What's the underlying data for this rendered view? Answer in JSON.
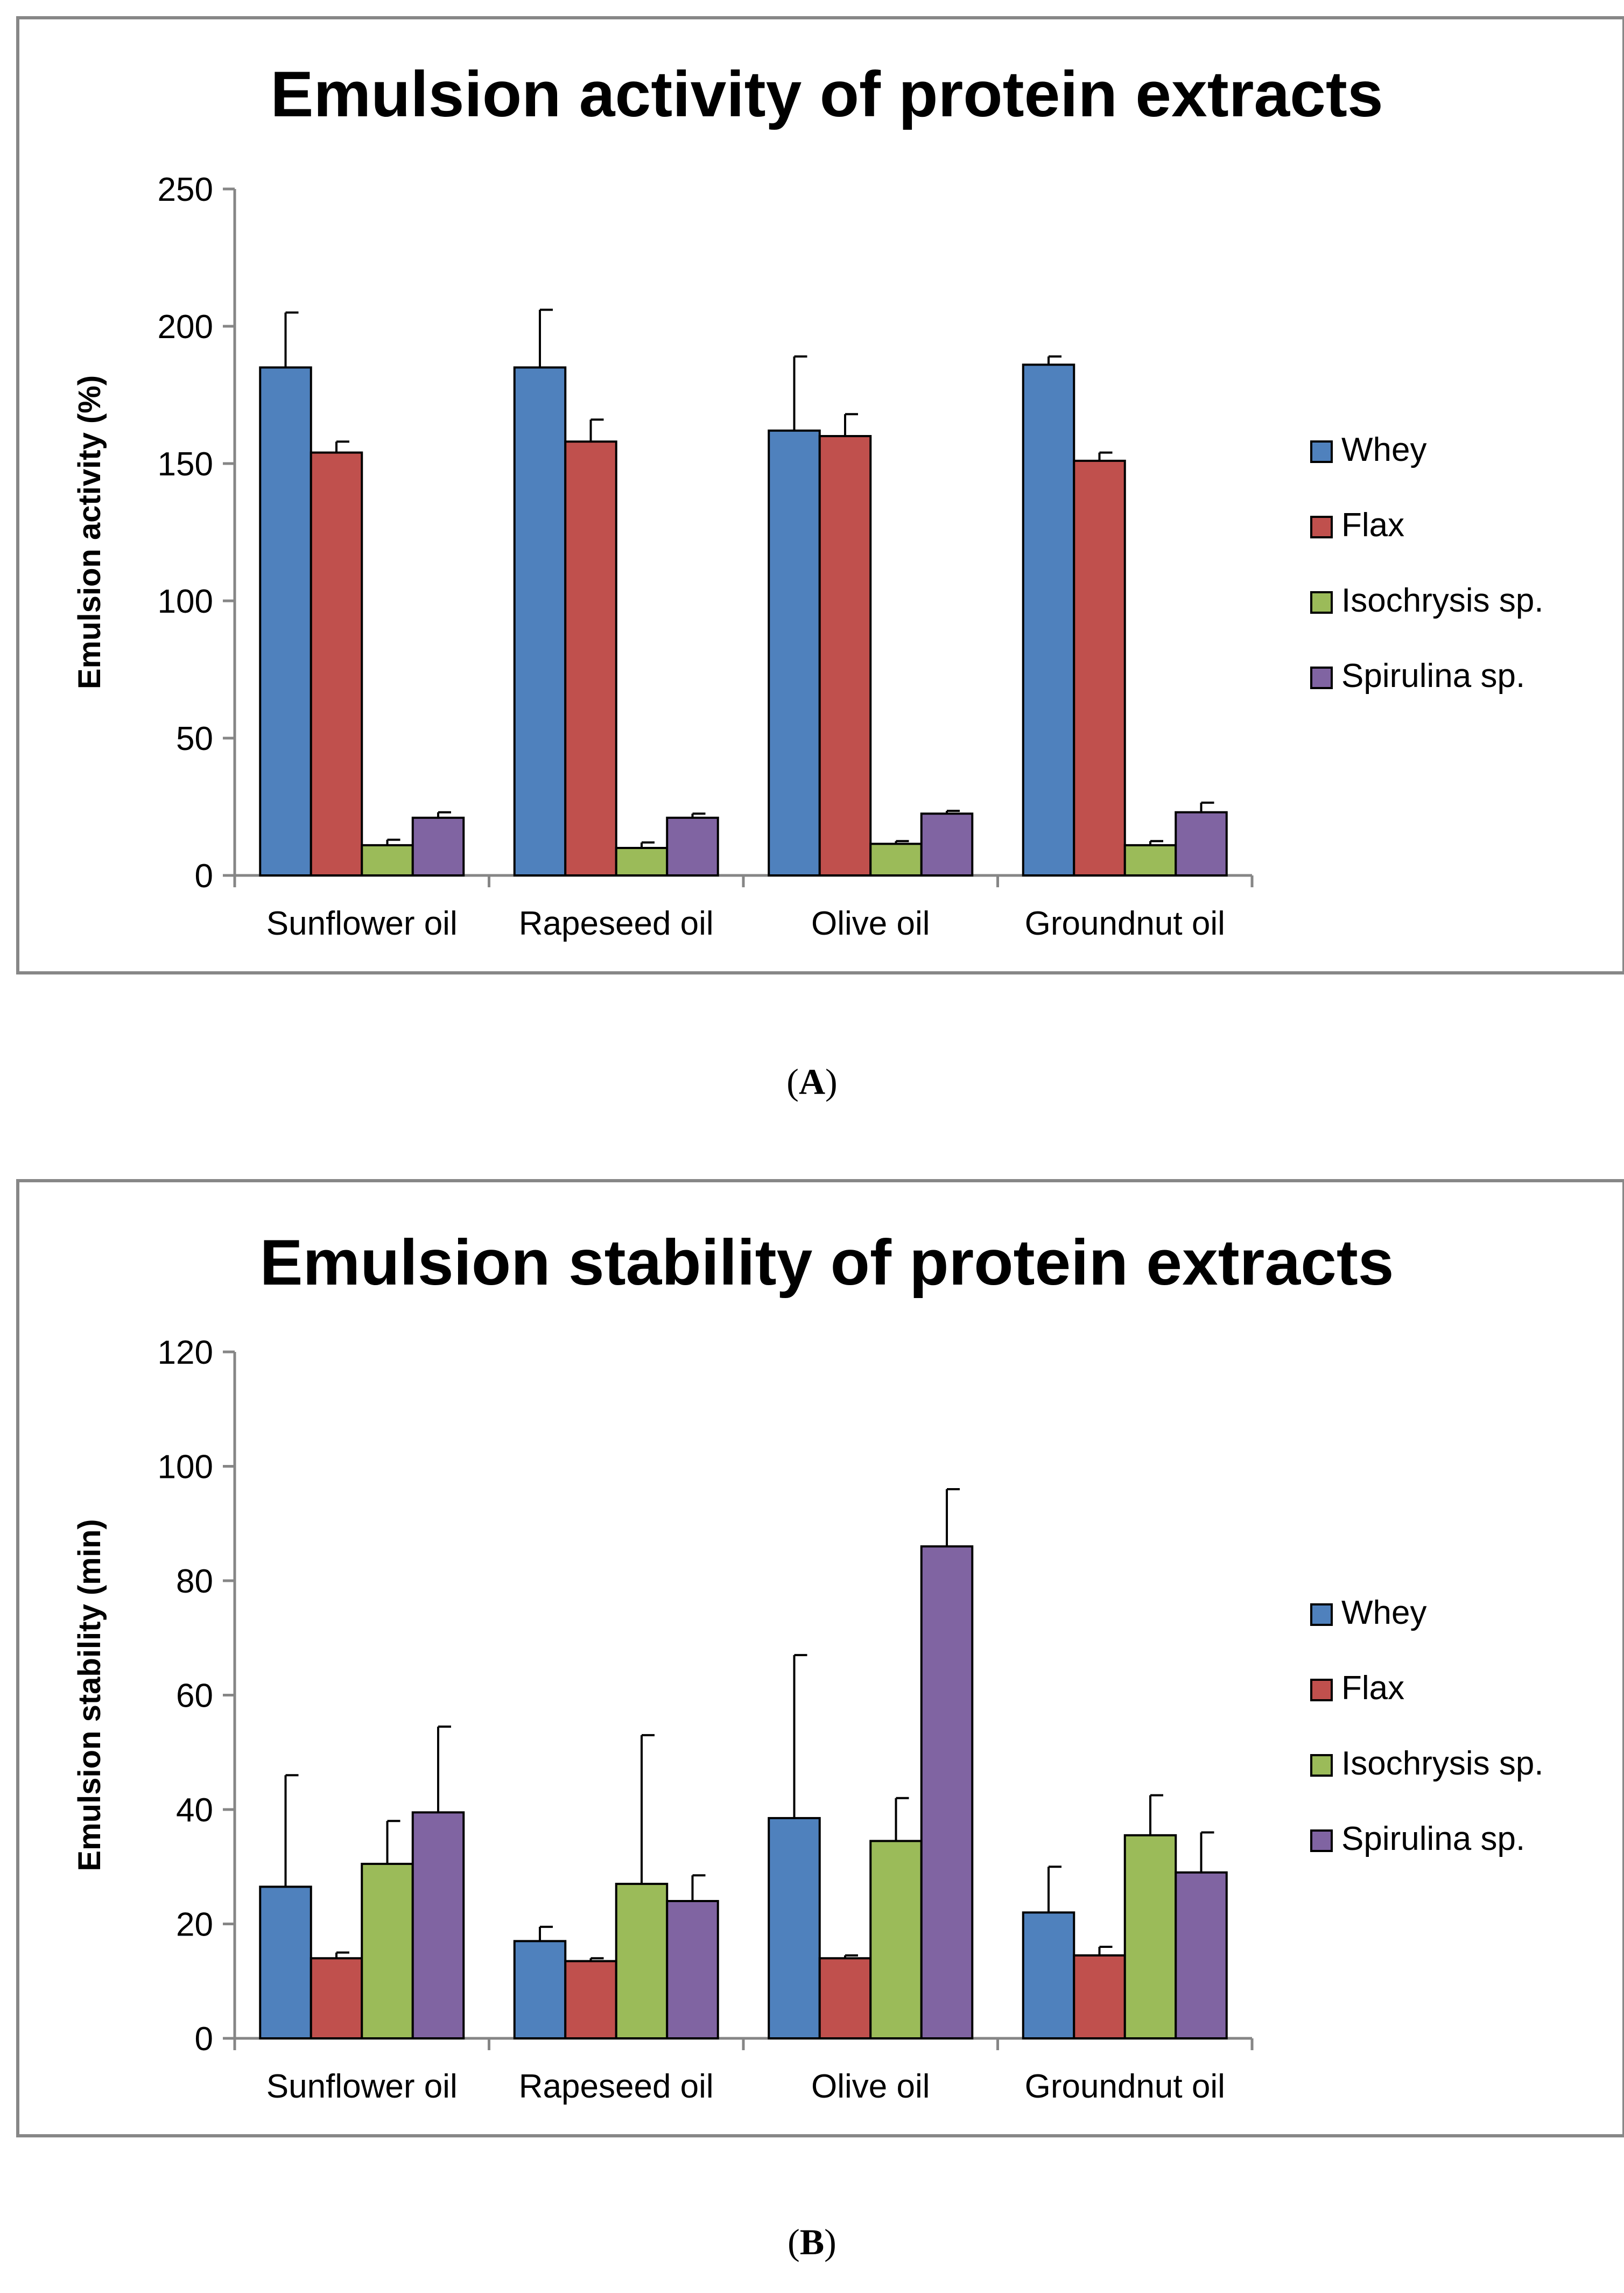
{
  "chart_data": [
    {
      "type": "bar",
      "title": "Emulsion activity of protein extracts",
      "xlabel": "",
      "ylabel": "Emulsion activity (%)",
      "ylim": [
        0,
        250
      ],
      "yticks": [
        0,
        50,
        100,
        150,
        200,
        250
      ],
      "categories": [
        "Sunflower oil",
        "Rapeseed oil",
        "Olive oil",
        "Groundnut oil"
      ],
      "legend_position": "right",
      "series": [
        {
          "name": "Whey",
          "color": "#4F81BD",
          "values": [
            185,
            185,
            162,
            186
          ],
          "errors": [
            20,
            21,
            27,
            3
          ]
        },
        {
          "name": "Flax",
          "color": "#C0504D",
          "values": [
            154,
            158,
            160,
            151
          ],
          "errors": [
            4,
            8,
            8,
            3
          ]
        },
        {
          "name": "Isochrysis sp.",
          "color": "#9BBB59",
          "values": [
            11,
            10,
            11.5,
            11
          ],
          "errors": [
            2,
            2,
            1,
            1.5
          ]
        },
        {
          "name": "Spirulina sp.",
          "color": "#8064A2",
          "values": [
            21,
            21,
            22.5,
            23
          ],
          "errors": [
            2,
            1.5,
            1,
            3.5
          ]
        }
      ],
      "panel_label": "A"
    },
    {
      "type": "bar",
      "title": "Emulsion stability of protein extracts",
      "xlabel": "",
      "ylabel": "Emulsion stability (min)",
      "ylim": [
        0,
        120
      ],
      "yticks": [
        0,
        20,
        40,
        60,
        80,
        100,
        120
      ],
      "categories": [
        "Sunflower oil",
        "Rapeseed oil",
        "Olive oil",
        "Groundnut oil"
      ],
      "legend_position": "right",
      "series": [
        {
          "name": "Whey",
          "color": "#4F81BD",
          "values": [
            26.5,
            17,
            38.5,
            22
          ],
          "errors": [
            19.5,
            2.5,
            28.5,
            8
          ]
        },
        {
          "name": "Flax",
          "color": "#C0504D",
          "values": [
            14,
            13.5,
            14,
            14.5
          ],
          "errors": [
            1,
            0.5,
            0.5,
            1.5
          ]
        },
        {
          "name": "Isochrysis sp.",
          "color": "#9BBB59",
          "values": [
            30.5,
            27,
            34.5,
            35.5
          ],
          "errors": [
            7.5,
            26,
            7.5,
            7
          ]
        },
        {
          "name": "Spirulina sp.",
          "color": "#8064A2",
          "values": [
            39.5,
            24,
            86,
            29
          ],
          "errors": [
            15,
            4.5,
            10,
            7
          ]
        }
      ],
      "panel_label": "B"
    }
  ]
}
